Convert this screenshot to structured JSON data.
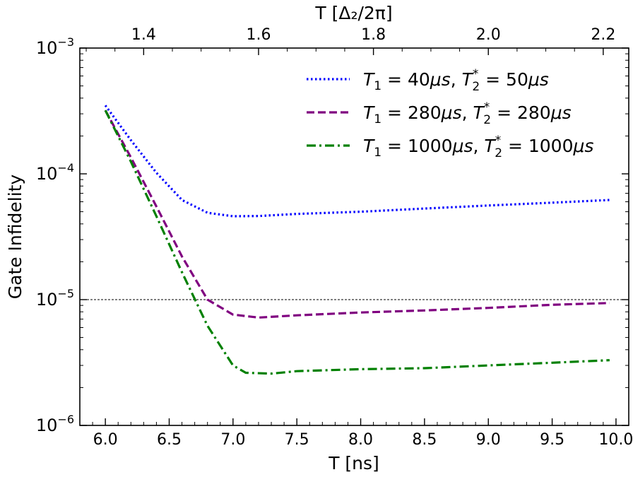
{
  "chart_data": {
    "type": "line",
    "xlabel": "T [ns]",
    "ylabel": "Gate Infidelity",
    "top_xlabel": "T [Δ₂/2π]",
    "xlim": [
      5.8,
      10.1
    ],
    "ylim_log10": [
      -6,
      -3
    ],
    "x_ticks": [
      6.0,
      6.5,
      7.0,
      7.5,
      8.0,
      8.5,
      9.0,
      9.5,
      10.0
    ],
    "x_tick_labels": [
      "6.0",
      "6.5",
      "7.0",
      "7.5",
      "8.0",
      "8.5",
      "9.0",
      "9.5",
      "10.0"
    ],
    "top_ticks": [
      {
        "x": 6.3,
        "label": "1.4"
      },
      {
        "x": 7.2,
        "label": "1.6"
      },
      {
        "x": 8.1,
        "label": "1.8"
      },
      {
        "x": 9.0,
        "label": "2.0"
      },
      {
        "x": 9.9,
        "label": "2.2"
      }
    ],
    "y_ticks": [
      {
        "exp": -3,
        "base": "10",
        "sup": "−3"
      },
      {
        "exp": -4,
        "base": "10",
        "sup": "−4"
      },
      {
        "exp": -5,
        "base": "10",
        "sup": "−5"
      },
      {
        "exp": -6,
        "base": "10",
        "sup": "−6"
      }
    ],
    "reference_line": {
      "y": 1e-05,
      "style": "dashed",
      "color": "#000000"
    },
    "legend_position": "top-right",
    "series": [
      {
        "name": "T1=40μs,T2*=50μs",
        "label_parts": {
          "T1": "40",
          "T2": "50"
        },
        "color": "#0000ff",
        "dash": "dotted",
        "x": [
          6.0,
          6.2,
          6.4,
          6.6,
          6.8,
          7.0,
          7.2,
          7.5,
          8.0,
          8.5,
          9.0,
          9.5,
          9.95
        ],
        "y": [
          0.00035,
          0.000185,
          0.000102,
          6.2e-05,
          4.9e-05,
          4.6e-05,
          4.62e-05,
          4.8e-05,
          5e-05,
          5.3e-05,
          5.6e-05,
          5.9e-05,
          6.2e-05
        ]
      },
      {
        "name": "T1=280μs,T2*=280μs",
        "label_parts": {
          "T1": "280",
          "T2": "280"
        },
        "color": "#800080",
        "dash": "dashed",
        "x": [
          6.0,
          6.2,
          6.4,
          6.6,
          6.8,
          7.0,
          7.2,
          7.5,
          8.0,
          8.5,
          9.0,
          9.5,
          9.95
        ],
        "y": [
          0.00032,
          0.000135,
          5.5e-05,
          2.2e-05,
          1e-05,
          7.6e-06,
          7.2e-06,
          7.5e-06,
          7.9e-06,
          8.2e-06,
          8.6e-06,
          9.1e-06,
          9.4e-06
        ]
      },
      {
        "name": "T1=1000μs,T2*=1000μs",
        "label_parts": {
          "T1": "1000",
          "T2": "1000"
        },
        "color": "#008000",
        "dash": "dashdot",
        "x": [
          6.0,
          6.2,
          6.4,
          6.6,
          6.8,
          7.0,
          7.1,
          7.3,
          7.5,
          8.0,
          8.5,
          9.0,
          9.5,
          9.95
        ],
        "y": [
          0.00032,
          0.000125,
          4.6e-05,
          1.65e-05,
          6.2e-06,
          3e-06,
          2.62e-06,
          2.58e-06,
          2.7e-06,
          2.8e-06,
          2.85e-06,
          3e-06,
          3.15e-06,
          3.3e-06
        ]
      }
    ]
  }
}
